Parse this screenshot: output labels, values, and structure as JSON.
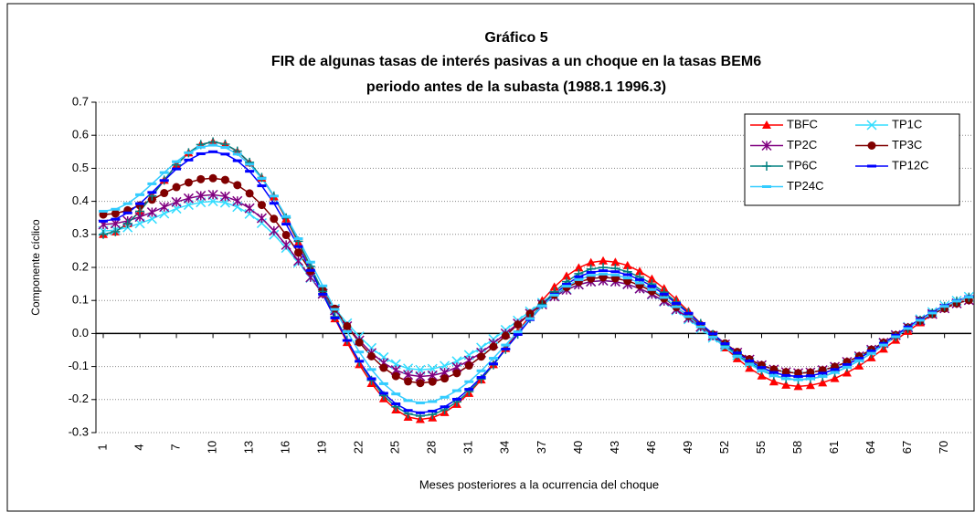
{
  "chart_data": {
    "type": "line",
    "title": "Gráfico 5",
    "subtitle": [
      "FIR de algunas tasas de interés pasivas a un choque en la tasas BEM6",
      "periodo antes de la subasta (1988.1 1996.3)"
    ],
    "x_label": "Meses posteriores a la ocurrencia del choque",
    "y_label": "Componente cíclico",
    "x": [
      1,
      2,
      3,
      4,
      5,
      6,
      7,
      8,
      9,
      10,
      11,
      12,
      13,
      14,
      15,
      16,
      17,
      18,
      19,
      20,
      21,
      22,
      23,
      24,
      25,
      26,
      27,
      28,
      29,
      30,
      31,
      32,
      33,
      34,
      35,
      36,
      37,
      38,
      39,
      40,
      41,
      42,
      43,
      44,
      45,
      46,
      47,
      48,
      49,
      50,
      51,
      52,
      53,
      54,
      55,
      56,
      57,
      58,
      59,
      60,
      61,
      62,
      63,
      64,
      65,
      66,
      67,
      68,
      69,
      70,
      71,
      72
    ],
    "xlim": [
      0.4,
      72.2
    ],
    "xticks": [
      1,
      4,
      7,
      10,
      13,
      16,
      19,
      22,
      25,
      28,
      31,
      34,
      37,
      40,
      43,
      46,
      49,
      52,
      55,
      58,
      61,
      64,
      67,
      70
    ],
    "ylim": [
      -0.3,
      0.7
    ],
    "yticks": [
      {
        "value": -0.3,
        "label": "-0.3"
      },
      {
        "value": -0.2,
        "label": "-0.2"
      },
      {
        "value": -0.1,
        "label": "-0.1"
      },
      {
        "value": 0,
        "label": "0.0"
      },
      {
        "value": 0.1,
        "label": "0.1"
      },
      {
        "value": 0.2,
        "label": "0.2"
      },
      {
        "value": 0.3,
        "label": "0.3"
      },
      {
        "value": 0.4,
        "label": "0.4"
      },
      {
        "value": 0.5,
        "label": "0.5"
      },
      {
        "value": 0.6,
        "label": "0.6"
      },
      {
        "value": 0.7,
        "label": "0.7"
      }
    ],
    "grid": true,
    "legend": "upper right",
    "series": [
      {
        "name": "TBFC",
        "color": "#ff0000",
        "marker": "triangle",
        "values": [
          0.3,
          0.308,
          0.333,
          0.37,
          0.416,
          0.464,
          0.51,
          0.547,
          0.572,
          0.58,
          0.573,
          0.551,
          0.517,
          0.471,
          0.414,
          0.347,
          0.275,
          0.199,
          0.121,
          0.045,
          -0.027,
          -0.094,
          -0.151,
          -0.197,
          -0.231,
          -0.253,
          -0.26,
          -0.255,
          -0.239,
          -0.214,
          -0.181,
          -0.14,
          -0.094,
          -0.045,
          0.005,
          0.054,
          0.1,
          0.141,
          0.174,
          0.199,
          0.215,
          0.22,
          0.216,
          0.206,
          0.188,
          0.165,
          0.136,
          0.103,
          0.067,
          0.03,
          -0.007,
          -0.043,
          -0.076,
          -0.105,
          -0.128,
          -0.146,
          -0.156,
          -0.16,
          -0.157,
          -0.149,
          -0.136,
          -0.119,
          -0.098,
          -0.073,
          -0.047,
          -0.02,
          0.007,
          0.033,
          0.058,
          0.079,
          0.096,
          0.109
        ]
      },
      {
        "name": "TP1C",
        "color": "#33ddff",
        "marker": "x",
        "values": [
          0.31,
          0.313,
          0.321,
          0.333,
          0.347,
          0.363,
          0.378,
          0.389,
          0.397,
          0.4,
          0.396,
          0.383,
          0.362,
          0.334,
          0.299,
          0.259,
          0.215,
          0.168,
          0.122,
          0.075,
          0.031,
          -0.009,
          -0.044,
          -0.072,
          -0.093,
          -0.106,
          -0.11,
          -0.107,
          -0.098,
          -0.084,
          -0.065,
          -0.043,
          -0.017,
          0.011,
          0.039,
          0.067,
          0.093,
          0.115,
          0.134,
          0.148,
          0.157,
          0.16,
          0.157,
          0.149,
          0.136,
          0.118,
          0.096,
          0.07,
          0.043,
          0.015,
          -0.013,
          -0.04,
          -0.066,
          -0.088,
          -0.106,
          -0.119,
          -0.127,
          -0.13,
          -0.128,
          -0.12,
          -0.109,
          -0.094,
          -0.075,
          -0.053,
          -0.03,
          -0.005,
          0.02,
          0.043,
          0.065,
          0.084,
          0.099,
          0.111
        ]
      },
      {
        "name": "TP2C",
        "color": "#800080",
        "marker": "star",
        "values": [
          0.33,
          0.333,
          0.341,
          0.353,
          0.367,
          0.383,
          0.398,
          0.409,
          0.417,
          0.42,
          0.415,
          0.401,
          0.379,
          0.349,
          0.311,
          0.268,
          0.22,
          0.17,
          0.12,
          0.07,
          0.022,
          -0.021,
          -0.059,
          -0.089,
          -0.111,
          -0.125,
          -0.13,
          -0.127,
          -0.118,
          -0.102,
          -0.082,
          -0.058,
          -0.03,
          0,
          0.03,
          0.06,
          0.088,
          0.112,
          0.132,
          0.148,
          0.157,
          0.16,
          0.157,
          0.149,
          0.136,
          0.119,
          0.098,
          0.073,
          0.047,
          0.02,
          -0.007,
          -0.033,
          -0.058,
          -0.079,
          -0.096,
          -0.109,
          -0.117,
          -0.12,
          -0.118,
          -0.111,
          -0.101,
          -0.086,
          -0.069,
          -0.049,
          -0.028,
          -0.005,
          0.018,
          0.039,
          0.059,
          0.076,
          0.091,
          0.101
        ]
      },
      {
        "name": "TP3C",
        "color": "#800000",
        "marker": "circle",
        "values": [
          0.36,
          0.363,
          0.373,
          0.388,
          0.405,
          0.425,
          0.443,
          0.457,
          0.467,
          0.47,
          0.465,
          0.449,
          0.424,
          0.389,
          0.347,
          0.298,
          0.245,
          0.189,
          0.131,
          0.075,
          0.022,
          -0.027,
          -0.069,
          -0.104,
          -0.129,
          -0.145,
          -0.15,
          -0.146,
          -0.136,
          -0.12,
          -0.097,
          -0.07,
          -0.04,
          -0.007,
          0.027,
          0.06,
          0.09,
          0.117,
          0.14,
          0.156,
          0.166,
          0.17,
          0.167,
          0.159,
          0.146,
          0.128,
          0.106,
          0.08,
          0.053,
          0.025,
          -0.003,
          -0.03,
          -0.056,
          -0.078,
          -0.096,
          -0.109,
          -0.117,
          -0.12,
          -0.118,
          -0.111,
          -0.101,
          -0.086,
          -0.069,
          -0.049,
          -0.028,
          -0.005,
          0.018,
          0.039,
          0.059,
          0.076,
          0.091,
          0.101
        ]
      },
      {
        "name": "TP6C",
        "color": "#008080",
        "marker": "plus",
        "values": [
          0.3,
          0.308,
          0.333,
          0.37,
          0.416,
          0.464,
          0.51,
          0.547,
          0.572,
          0.58,
          0.573,
          0.552,
          0.518,
          0.472,
          0.416,
          0.35,
          0.279,
          0.203,
          0.127,
          0.051,
          -0.02,
          -0.086,
          -0.142,
          -0.188,
          -0.222,
          -0.243,
          -0.25,
          -0.245,
          -0.231,
          -0.207,
          -0.176,
          -0.138,
          -0.095,
          -0.048,
          -0.002,
          0.045,
          0.088,
          0.126,
          0.157,
          0.181,
          0.195,
          0.2,
          0.197,
          0.187,
          0.171,
          0.15,
          0.125,
          0.095,
          0.063,
          0.03,
          -0.003,
          -0.035,
          -0.065,
          -0.09,
          -0.111,
          -0.127,
          -0.137,
          -0.14,
          -0.137,
          -0.13,
          -0.118,
          -0.102,
          -0.082,
          -0.06,
          -0.035,
          -0.01,
          0.015,
          0.04,
          0.062,
          0.082,
          0.098,
          0.11
        ]
      },
      {
        "name": "TP12C",
        "color": "#0000ff",
        "marker": "dash",
        "values": [
          0.34,
          0.346,
          0.365,
          0.393,
          0.427,
          0.463,
          0.498,
          0.525,
          0.544,
          0.55,
          0.543,
          0.523,
          0.491,
          0.447,
          0.394,
          0.331,
          0.263,
          0.191,
          0.119,
          0.047,
          -0.021,
          -0.084,
          -0.137,
          -0.181,
          -0.213,
          -0.233,
          -0.24,
          -0.235,
          -0.222,
          -0.199,
          -0.169,
          -0.133,
          -0.092,
          -0.047,
          -0.003,
          0.042,
          0.083,
          0.119,
          0.149,
          0.172,
          0.185,
          0.19,
          0.187,
          0.178,
          0.163,
          0.143,
          0.119,
          0.091,
          0.061,
          0.03,
          -0.001,
          -0.031,
          -0.059,
          -0.083,
          -0.103,
          -0.118,
          -0.127,
          -0.13,
          -0.128,
          -0.12,
          -0.109,
          -0.094,
          -0.075,
          -0.053,
          -0.03,
          -0.005,
          0.02,
          0.043,
          0.065,
          0.084,
          0.099,
          0.111
        ]
      },
      {
        "name": "TP24C",
        "color": "#33ccff",
        "marker": "dash",
        "values": [
          0.37,
          0.376,
          0.393,
          0.42,
          0.453,
          0.487,
          0.52,
          0.547,
          0.564,
          0.57,
          0.563,
          0.543,
          0.512,
          0.469,
          0.416,
          0.354,
          0.287,
          0.216,
          0.144,
          0.073,
          0.006,
          -0.056,
          -0.109,
          -0.152,
          -0.183,
          -0.203,
          -0.21,
          -0.206,
          -0.193,
          -0.173,
          -0.146,
          -0.113,
          -0.075,
          -0.035,
          0.005,
          0.045,
          0.083,
          0.116,
          0.143,
          0.163,
          0.176,
          0.18,
          0.177,
          0.168,
          0.153,
          0.133,
          0.109,
          0.081,
          0.051,
          0.02,
          -0.011,
          -0.041,
          -0.069,
          -0.093,
          -0.113,
          -0.128,
          -0.137,
          -0.14,
          -0.137,
          -0.13,
          -0.118,
          -0.102,
          -0.082,
          -0.06,
          -0.035,
          -0.01,
          0.015,
          0.04,
          0.062,
          0.082,
          0.098,
          0.11
        ]
      }
    ]
  }
}
